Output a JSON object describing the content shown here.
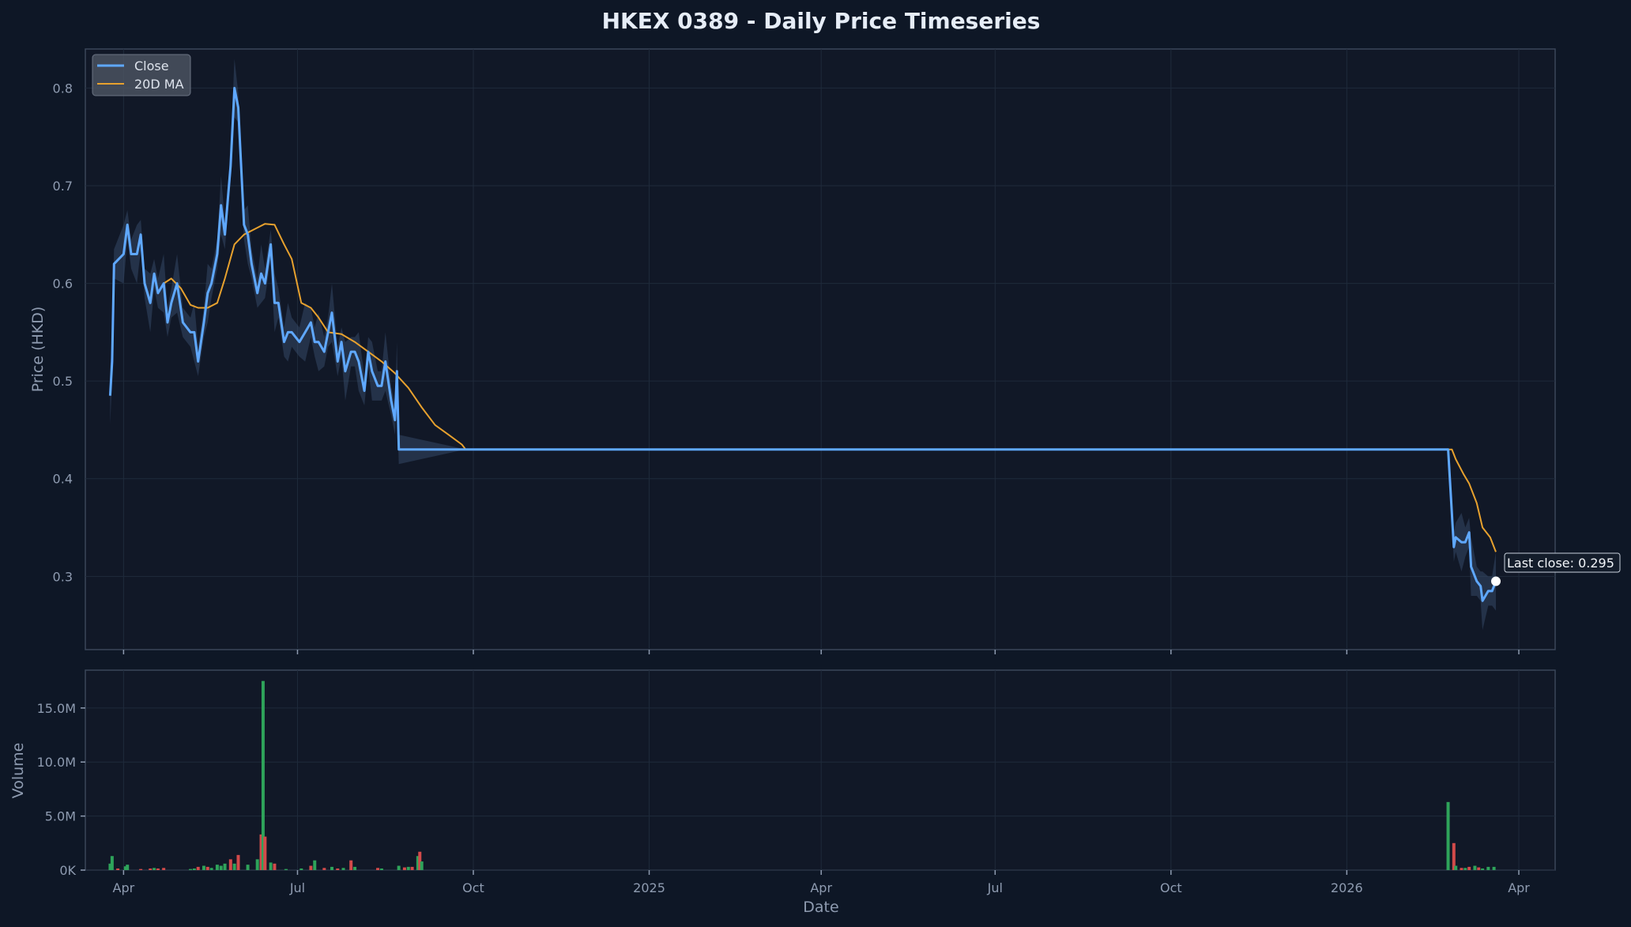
{
  "chart_data": [
    {
      "type": "line",
      "title": "HKEX 0389 - Daily Price Timeseries",
      "xlabel": "",
      "ylabel": "Price (HKD)",
      "ylim": [
        0.225,
        0.84
      ],
      "xlim": [
        "2024-03-12",
        "2026-04-20"
      ],
      "yticks": [
        "0.3",
        "0.4",
        "0.5",
        "0.6",
        "0.7",
        "0.8"
      ],
      "grid": true,
      "legend_position": "top-left",
      "series": [
        {
          "name": "Close",
          "color": "#5fa8ff",
          "points": [
            [
              "2024-03-25",
              0.485
            ],
            [
              "2024-03-26",
              0.52
            ],
            [
              "2024-03-27",
              0.62
            ],
            [
              "2024-04-01",
              0.63
            ],
            [
              "2024-04-03",
              0.66
            ],
            [
              "2024-04-05",
              0.63
            ],
            [
              "2024-04-08",
              0.63
            ],
            [
              "2024-04-10",
              0.65
            ],
            [
              "2024-04-12",
              0.6
            ],
            [
              "2024-04-15",
              0.58
            ],
            [
              "2024-04-17",
              0.61
            ],
            [
              "2024-04-19",
              0.59
            ],
            [
              "2024-04-22",
              0.6
            ],
            [
              "2024-04-24",
              0.56
            ],
            [
              "2024-04-26",
              0.58
            ],
            [
              "2024-04-29",
              0.6
            ],
            [
              "2024-05-02",
              0.56
            ],
            [
              "2024-05-06",
              0.55
            ],
            [
              "2024-05-08",
              0.55
            ],
            [
              "2024-05-10",
              0.52
            ],
            [
              "2024-05-13",
              0.56
            ],
            [
              "2024-05-15",
              0.59
            ],
            [
              "2024-05-17",
              0.6
            ],
            [
              "2024-05-20",
              0.63
            ],
            [
              "2024-05-22",
              0.68
            ],
            [
              "2024-05-24",
              0.65
            ],
            [
              "2024-05-27",
              0.72
            ],
            [
              "2024-05-29",
              0.8
            ],
            [
              "2024-05-31",
              0.78
            ],
            [
              "2024-06-03",
              0.66
            ],
            [
              "2024-06-05",
              0.65
            ],
            [
              "2024-06-07",
              0.62
            ],
            [
              "2024-06-10",
              0.59
            ],
            [
              "2024-06-12",
              0.61
            ],
            [
              "2024-06-14",
              0.6
            ],
            [
              "2024-06-17",
              0.64
            ],
            [
              "2024-06-19",
              0.58
            ],
            [
              "2024-06-21",
              0.58
            ],
            [
              "2024-06-24",
              0.54
            ],
            [
              "2024-06-26",
              0.55
            ],
            [
              "2024-06-28",
              0.55
            ],
            [
              "2024-07-02",
              0.54
            ],
            [
              "2024-07-05",
              0.55
            ],
            [
              "2024-07-08",
              0.56
            ],
            [
              "2024-07-10",
              0.54
            ],
            [
              "2024-07-12",
              0.54
            ],
            [
              "2024-07-15",
              0.53
            ],
            [
              "2024-07-17",
              0.55
            ],
            [
              "2024-07-19",
              0.57
            ],
            [
              "2024-07-22",
              0.52
            ],
            [
              "2024-07-24",
              0.54
            ],
            [
              "2024-07-26",
              0.51
            ],
            [
              "2024-07-29",
              0.53
            ],
            [
              "2024-07-31",
              0.53
            ],
            [
              "2024-08-02",
              0.52
            ],
            [
              "2024-08-05",
              0.49
            ],
            [
              "2024-08-07",
              0.53
            ],
            [
              "2024-08-09",
              0.51
            ],
            [
              "2024-08-12",
              0.495
            ],
            [
              "2024-08-14",
              0.495
            ],
            [
              "2024-08-16",
              0.52
            ],
            [
              "2024-08-19",
              0.48
            ],
            [
              "2024-08-21",
              0.46
            ],
            [
              "2024-08-22",
              0.51
            ],
            [
              "2024-08-23",
              0.43
            ],
            [
              "2024-09-27",
              0.43
            ],
            [
              "2026-02-23",
              0.43
            ],
            [
              "2026-02-26",
              0.33
            ],
            [
              "2026-02-27",
              0.34
            ],
            [
              "2026-03-02",
              0.335
            ],
            [
              "2026-03-04",
              0.335
            ],
            [
              "2026-03-06",
              0.345
            ],
            [
              "2026-03-07",
              0.31
            ],
            [
              "2026-03-10",
              0.295
            ],
            [
              "2026-03-12",
              0.29
            ],
            [
              "2026-03-13",
              0.275
            ],
            [
              "2026-03-16",
              0.285
            ],
            [
              "2026-03-18",
              0.285
            ],
            [
              "2026-03-20",
              0.295
            ]
          ]
        },
        {
          "name": "20D MA",
          "color": "#e7a12e",
          "points": [
            [
              "2024-04-22",
              0.6
            ],
            [
              "2024-04-26",
              0.605
            ],
            [
              "2024-05-01",
              0.595
            ],
            [
              "2024-05-06",
              0.578
            ],
            [
              "2024-05-10",
              0.575
            ],
            [
              "2024-05-15",
              0.575
            ],
            [
              "2024-05-20",
              0.58
            ],
            [
              "2024-05-24",
              0.605
            ],
            [
              "2024-05-29",
              0.64
            ],
            [
              "2024-06-03",
              0.65
            ],
            [
              "2024-06-10",
              0.657
            ],
            [
              "2024-06-14",
              0.661
            ],
            [
              "2024-06-19",
              0.66
            ],
            [
              "2024-06-24",
              0.64
            ],
            [
              "2024-06-28",
              0.625
            ],
            [
              "2024-07-03",
              0.58
            ],
            [
              "2024-07-08",
              0.575
            ],
            [
              "2024-07-12",
              0.565
            ],
            [
              "2024-07-17",
              0.55
            ],
            [
              "2024-07-24",
              0.548
            ],
            [
              "2024-07-31",
              0.54
            ],
            [
              "2024-08-07",
              0.53
            ],
            [
              "2024-08-14",
              0.52
            ],
            [
              "2024-08-21",
              0.508
            ],
            [
              "2024-08-28",
              0.493
            ],
            [
              "2024-09-04",
              0.473
            ],
            [
              "2024-09-11",
              0.455
            ],
            [
              "2024-09-18",
              0.445
            ],
            [
              "2024-09-25",
              0.435
            ],
            [
              "2024-09-27",
              0.43
            ],
            [
              "2026-02-25",
              0.43
            ],
            [
              "2026-02-27",
              0.42
            ],
            [
              "2026-03-03",
              0.405
            ],
            [
              "2026-03-06",
              0.395
            ],
            [
              "2026-03-10",
              0.375
            ],
            [
              "2026-03-13",
              0.35
            ],
            [
              "2026-03-17",
              0.34
            ],
            [
              "2026-03-20",
              0.325
            ]
          ]
        }
      ],
      "annotations": [
        {
          "text": "Last close: 0.295",
          "x": "2026-03-20",
          "y": 0.295
        }
      ]
    },
    {
      "type": "bar",
      "xlabel": "Date",
      "ylabel": "Volume",
      "ylim": [
        0,
        18500000
      ],
      "yticks": [
        "0K",
        "5.0M",
        "10.0M",
        "15.0M"
      ],
      "xticks": [
        [
          "2024-04-01",
          "Apr"
        ],
        [
          "2024-07-01",
          "Jul"
        ],
        [
          "2024-10-01",
          "Oct"
        ],
        [
          "2025-01-01",
          "2025"
        ],
        [
          "2025-04-01",
          "Apr"
        ],
        [
          "2025-07-01",
          "Jul"
        ],
        [
          "2025-10-01",
          "Oct"
        ],
        [
          "2026-01-01",
          "2026"
        ],
        [
          "2026-04-01",
          "Apr"
        ]
      ],
      "up_color": "#2ea35a",
      "down_color": "#d34a4a",
      "bars": [
        [
          "2024-03-25",
          600000,
          "up"
        ],
        [
          "2024-03-26",
          1300000,
          "up"
        ],
        [
          "2024-03-29",
          150000,
          "down"
        ],
        [
          "2024-04-02",
          350000,
          "up"
        ],
        [
          "2024-04-03",
          500000,
          "up"
        ],
        [
          "2024-04-10",
          100000,
          "down"
        ],
        [
          "2024-04-15",
          150000,
          "down"
        ],
        [
          "2024-04-17",
          200000,
          "up"
        ],
        [
          "2024-04-19",
          150000,
          "down"
        ],
        [
          "2024-04-22",
          200000,
          "down"
        ],
        [
          "2024-05-06",
          100000,
          "up"
        ],
        [
          "2024-05-08",
          150000,
          "up"
        ],
        [
          "2024-05-10",
          300000,
          "down"
        ],
        [
          "2024-05-13",
          400000,
          "up"
        ],
        [
          "2024-05-15",
          300000,
          "down"
        ],
        [
          "2024-05-17",
          200000,
          "up"
        ],
        [
          "2024-05-20",
          500000,
          "up"
        ],
        [
          "2024-05-22",
          400000,
          "up"
        ],
        [
          "2024-05-24",
          600000,
          "up"
        ],
        [
          "2024-05-27",
          1000000,
          "down"
        ],
        [
          "2024-05-29",
          600000,
          "up"
        ],
        [
          "2024-05-31",
          1400000,
          "down"
        ],
        [
          "2024-06-05",
          500000,
          "up"
        ],
        [
          "2024-06-10",
          1000000,
          "up"
        ],
        [
          "2024-06-12",
          3300000,
          "down"
        ],
        [
          "2024-06-13",
          17500000,
          "up"
        ],
        [
          "2024-06-14",
          3100000,
          "down"
        ],
        [
          "2024-06-17",
          700000,
          "up"
        ],
        [
          "2024-06-19",
          600000,
          "down"
        ],
        [
          "2024-06-25",
          100000,
          "up"
        ],
        [
          "2024-07-03",
          150000,
          "up"
        ],
        [
          "2024-07-08",
          400000,
          "down"
        ],
        [
          "2024-07-10",
          900000,
          "up"
        ],
        [
          "2024-07-15",
          200000,
          "down"
        ],
        [
          "2024-07-19",
          300000,
          "up"
        ],
        [
          "2024-07-22",
          150000,
          "down"
        ],
        [
          "2024-07-25",
          200000,
          "up"
        ],
        [
          "2024-07-29",
          900000,
          "down"
        ],
        [
          "2024-07-31",
          300000,
          "up"
        ],
        [
          "2024-08-12",
          200000,
          "down"
        ],
        [
          "2024-08-14",
          150000,
          "up"
        ],
        [
          "2024-08-23",
          400000,
          "up"
        ],
        [
          "2024-08-26",
          250000,
          "down"
        ],
        [
          "2024-08-28",
          300000,
          "up"
        ],
        [
          "2024-08-30",
          300000,
          "down"
        ],
        [
          "2024-09-02",
          1300000,
          "up"
        ],
        [
          "2024-09-03",
          1700000,
          "down"
        ],
        [
          "2024-09-04",
          800000,
          "up"
        ],
        [
          "2026-02-23",
          6300000,
          "up"
        ],
        [
          "2026-02-26",
          2500000,
          "down"
        ],
        [
          "2026-02-27",
          400000,
          "up"
        ],
        [
          "2026-03-02",
          200000,
          "down"
        ],
        [
          "2026-03-04",
          200000,
          "up"
        ],
        [
          "2026-03-06",
          300000,
          "down"
        ],
        [
          "2026-03-09",
          400000,
          "up"
        ],
        [
          "2026-03-11",
          250000,
          "down"
        ],
        [
          "2026-03-13",
          150000,
          "up"
        ],
        [
          "2026-03-16",
          300000,
          "up"
        ],
        [
          "2026-03-19",
          300000,
          "up"
        ]
      ]
    }
  ]
}
